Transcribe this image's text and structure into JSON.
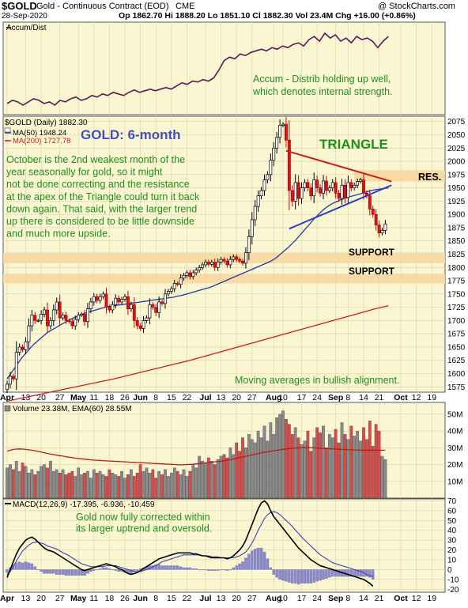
{
  "header": {
    "symbol": "$GOLD",
    "name": "Gold - Continuous Contract (EOD)",
    "exchange": "CME",
    "watermark": "@ StockCharts.com",
    "date": "28-Sep-2020",
    "quote": "Op 1862.70  Hi 1888.20  Lo 1851.10  Cl 1882.30  Vol 23.4M  Chg +16.00 (+0.86%)"
  },
  "colors": {
    "panel_bg": "#fbf6d2",
    "ma200": "#c81e1e",
    "ma50": "#223aa0",
    "annotation_green": "#1f8f1f",
    "title_blue": "#4050b8",
    "support_band": "#f7d7a0",
    "volume_down": "#d94a4a",
    "volume_up": "#8a8a8a"
  },
  "chart_data": [
    {
      "type": "line",
      "panel": "accum_dist",
      "legend": "Accum/Dist",
      "annotation": "Accum - Distrib holding up well,\nwhich denotes internal strength.",
      "series": [
        {
          "name": "Accum/Dist",
          "values": [
            0.08,
            0.12,
            0.1,
            0.06,
            0.1,
            0.14,
            0.12,
            0.08,
            0.1,
            0.06,
            0.12,
            0.1,
            0.14,
            0.16,
            0.12,
            0.14,
            0.18,
            0.16,
            0.2,
            0.18,
            0.22,
            0.2,
            0.18,
            0.22,
            0.25,
            0.22,
            0.24,
            0.26,
            0.24,
            0.26,
            0.28,
            0.26,
            0.3,
            0.34,
            0.32,
            0.36,
            0.35,
            0.38,
            0.36,
            0.4,
            0.5,
            0.62,
            0.66,
            0.64,
            0.7,
            0.68,
            0.72,
            0.74,
            0.76,
            0.74,
            0.78,
            0.76,
            0.8,
            0.78,
            0.82,
            0.84,
            0.8,
            0.88,
            0.92,
            0.86,
            0.96,
            0.9,
            0.94,
            0.86,
            0.9,
            0.84,
            0.92,
            0.88,
            0.9,
            0.86,
            0.78,
            0.86,
            0.92
          ]
        }
      ]
    },
    {
      "type": "candlestick",
      "panel": "price",
      "legend": [
        "$GOLD (Daily) 1882.30",
        "MA(50) 1948.24",
        "MA(200) 1727.78"
      ],
      "title": "GOLD: 6-month",
      "ylim": [
        1565,
        2085
      ],
      "yticks": [
        1575,
        1600,
        1625,
        1650,
        1675,
        1700,
        1725,
        1750,
        1775,
        1800,
        1825,
        1850,
        1875,
        1900,
        1925,
        1950,
        1975,
        2000,
        2025,
        2050,
        2075
      ],
      "xlabels": [
        {
          "t": 0,
          "label": "Apr"
        },
        {
          "t": 6,
          "label": "13"
        },
        {
          "t": 11,
          "label": "20"
        },
        {
          "t": 17,
          "label": "27"
        },
        {
          "t": 23,
          "label": "May"
        },
        {
          "t": 28,
          "label": "11"
        },
        {
          "t": 33,
          "label": "18"
        },
        {
          "t": 38,
          "label": "26"
        },
        {
          "t": 43,
          "label": "Jun"
        },
        {
          "t": 48,
          "label": "8"
        },
        {
          "t": 53,
          "label": "15"
        },
        {
          "t": 58,
          "label": "22"
        },
        {
          "t": 64,
          "label": "Jul"
        },
        {
          "t": 69,
          "label": "13"
        },
        {
          "t": 74,
          "label": "20"
        },
        {
          "t": 79,
          "label": "27"
        },
        {
          "t": 86,
          "label": "Aug"
        },
        {
          "t": 89,
          "label": "10"
        },
        {
          "t": 95,
          "label": "17"
        },
        {
          "t": 100,
          "label": "24"
        },
        {
          "t": 106,
          "label": "Sep"
        },
        {
          "t": 110,
          "label": "8"
        },
        {
          "t": 115,
          "label": "14"
        },
        {
          "t": 120,
          "label": "21"
        },
        {
          "t": 127,
          "label": "Oct"
        },
        {
          "t": 132,
          "label": "12"
        },
        {
          "t": 137,
          "label": "19"
        }
      ],
      "ohlc_close": [
        1580,
        1595,
        1590,
        1640,
        1650,
        1645,
        1660,
        1690,
        1710,
        1700,
        1700,
        1712,
        1720,
        1690,
        1700,
        1720,
        1735,
        1705,
        1710,
        1700,
        1698,
        1690,
        1702,
        1710,
        1712,
        1698,
        1722,
        1735,
        1745,
        1738,
        1745,
        1750,
        1725,
        1720,
        1730,
        1742,
        1735,
        1740,
        1745,
        1722,
        1730,
        1700,
        1690,
        1685,
        1700,
        1705,
        1730,
        1725,
        1715,
        1735,
        1732,
        1750,
        1755,
        1760,
        1770,
        1768,
        1780,
        1785,
        1790,
        1783,
        1790,
        1795,
        1800,
        1805,
        1810,
        1806,
        1810,
        1800,
        1810,
        1815,
        1812,
        1805,
        1815,
        1820,
        1815,
        1812,
        1808,
        1828,
        1858,
        1890,
        1915,
        1935,
        1945,
        1965,
        1975,
        2002,
        2025,
        2045,
        2068,
        2070,
        2040,
        1945,
        1925,
        1960,
        1930,
        1950,
        1960,
        1950,
        1935,
        1965,
        1950,
        1940,
        1963,
        1945,
        1950,
        1960,
        1940,
        1930,
        1955,
        1932,
        1960,
        1950,
        1955,
        1962,
        1965,
        1940,
        1935,
        1910,
        1900,
        1880,
        1865,
        1870,
        1882
      ],
      "ma50": {
        "start_t": 0,
        "values": [
          1590,
          1600,
          1610,
          1620,
          1630,
          1638,
          1646,
          1654,
          1660,
          1666,
          1672,
          1678,
          1682,
          1686,
          1690,
          1694,
          1698,
          1702,
          1705,
          1708,
          1711,
          1714,
          1716,
          1718,
          1720,
          1722,
          1724,
          1726,
          1727,
          1728,
          1729,
          1730,
          1731,
          1732,
          1733,
          1734,
          1735,
          1736,
          1737,
          1738,
          1739,
          1740,
          1741,
          1742,
          1743,
          1744,
          1746,
          1747,
          1749,
          1751,
          1753,
          1755,
          1757,
          1759,
          1761,
          1763,
          1766,
          1769,
          1772,
          1775,
          1778,
          1781,
          1784,
          1787,
          1790,
          1793,
          1796,
          1799,
          1802,
          1805,
          1808,
          1811,
          1815,
          1820,
          1826,
          1832,
          1838,
          1845,
          1852,
          1860,
          1868,
          1876,
          1884,
          1892,
          1899,
          1906,
          1912,
          1917,
          1921,
          1924,
          1927,
          1930,
          1932,
          1934,
          1936,
          1938,
          1940,
          1942,
          1944,
          1946,
          1947,
          1948,
          1949,
          1950
        ]
      },
      "ma200": {
        "start_t": 0,
        "values": [
          1548,
          1554,
          1560,
          1566,
          1572,
          1578,
          1584,
          1590,
          1597,
          1604,
          1611,
          1618,
          1625,
          1633,
          1641,
          1649,
          1657,
          1665,
          1673,
          1681,
          1689,
          1697,
          1705,
          1713,
          1721,
          1728
        ]
      },
      "annotations": [
        {
          "text": "TRIANGLE",
          "color": "green"
        },
        {
          "text": "RES.",
          "color": "black"
        },
        {
          "text": "SUPPORT",
          "color": "black"
        },
        {
          "text": "SUPPORT",
          "color": "black"
        },
        {
          "text": "Moving averages in bullish alignment.",
          "color": "green"
        },
        {
          "text": "October is the 2nd weakest month of the\nyear seasonally for gold, so it might\nnot be done correcting and the resistance\nat the apex of the Triangle could turn it back\ndown again. That said, with the larger trend\nup there is considered to be little downside\nand much more upside.",
          "color": "green"
        }
      ],
      "bands": [
        {
          "label": "RES.",
          "range": [
            1962,
            1983
          ]
        },
        {
          "label": "SUPPORT",
          "range": [
            1808,
            1828
          ]
        },
        {
          "label": "SUPPORT",
          "range": [
            1770,
            1788
          ]
        }
      ]
    },
    {
      "type": "bar",
      "panel": "volume",
      "legend": "Volume 23.38M, EMA(60) 28.55M",
      "ylim": [
        0,
        57
      ],
      "yticks": [
        10,
        20,
        30,
        40,
        50
      ],
      "ytick_suffix": "M",
      "values": [
        18,
        20,
        17,
        22,
        16,
        21,
        19,
        15,
        17,
        14,
        16,
        19,
        20,
        18,
        22,
        16,
        17,
        15,
        17,
        14,
        15,
        16,
        13,
        18,
        14,
        15,
        16,
        12,
        17,
        15,
        16,
        14,
        13,
        17,
        15,
        14,
        13,
        16,
        12,
        14,
        17,
        13,
        15,
        20,
        16,
        18,
        15,
        17,
        12,
        16,
        14,
        17,
        13,
        15,
        18,
        16,
        14,
        17,
        13,
        16,
        20,
        18,
        25,
        22,
        21,
        24,
        22,
        20,
        23,
        25,
        26,
        24,
        30,
        26,
        33,
        28,
        36,
        30,
        38,
        35,
        33,
        40,
        36,
        43,
        34,
        45,
        38,
        48,
        50,
        52,
        47,
        44,
        38,
        42,
        36,
        32,
        34,
        40,
        28,
        36,
        42,
        39,
        43,
        30,
        38,
        36,
        41,
        33,
        45,
        38,
        35,
        43,
        37,
        40,
        34,
        42,
        35,
        46,
        31,
        44,
        40,
        25,
        23
      ],
      "ema60": [
        28,
        28.5,
        29,
        29.2,
        29.3,
        29.2,
        29.0,
        28.8,
        28.5,
        28.2,
        27.8,
        27.4,
        27.0,
        26.6,
        26.2,
        25.9,
        25.6,
        25.3,
        25.0,
        24.7,
        24.4,
        24.1,
        23.8,
        23.6,
        23.4,
        23.2,
        23.0,
        22.8,
        22.6,
        22.5,
        22.4,
        22.3,
        22.2,
        22.1,
        22.0,
        21.9,
        21.8,
        21.7,
        21.6,
        21.5,
        21.4,
        21.3,
        21.2,
        21.1,
        21.0,
        20.9,
        20.8,
        20.7,
        20.6,
        20.5,
        20.4,
        20.3,
        20.2,
        20.1,
        20.0,
        19.9,
        19.8,
        19.9,
        20.0,
        20.1,
        20.2,
        20.4,
        20.6,
        20.8,
        21.0,
        21.2,
        21.4,
        21.6,
        21.8,
        22.0,
        22.3,
        22.6,
        22.9,
        23.3,
        23.7,
        24.1,
        24.5,
        24.9,
        25.3,
        25.7,
        26.1,
        26.5,
        26.9,
        27.3,
        27.6,
        27.9,
        28.2,
        28.5,
        28.8,
        29.1,
        29.3,
        29.5,
        29.7,
        29.8,
        29.9,
        30.0,
        30.0,
        30.0,
        30.0,
        29.9,
        29.8,
        29.7,
        29.6,
        29.5,
        29.4,
        29.3,
        29.2,
        29.1,
        29.0,
        28.9,
        28.8,
        28.8,
        28.7,
        28.7,
        28.6,
        28.6,
        28.6,
        28.6,
        28.6,
        28.55,
        28.55,
        28.55,
        28.55
      ]
    },
    {
      "type": "line",
      "panel": "macd",
      "legend": "MACD(12,26,9) -17.395, -6.936, -10.459",
      "annotation": "Gold now fully corrected within\nits larger uptrend and oversold.",
      "ylim": [
        -23,
        72
      ],
      "yticks": [
        -20,
        -10,
        0,
        10,
        20,
        30,
        40,
        50,
        60,
        70
      ],
      "macd": [
        -8,
        0,
        8,
        16,
        22,
        26,
        30,
        32,
        33,
        31,
        28,
        25,
        22,
        20,
        19,
        18,
        16,
        14,
        12,
        10,
        8,
        6,
        4,
        2,
        0,
        -1,
        0,
        1,
        2,
        3,
        4,
        5,
        6,
        5,
        4,
        3,
        1,
        0,
        -2,
        -4,
        -5,
        -4,
        -3,
        -1,
        1,
        3,
        5,
        7,
        9,
        11,
        12,
        13,
        14,
        15,
        16,
        17,
        17,
        17,
        17,
        17,
        16,
        16,
        15,
        14,
        14,
        13,
        12,
        12,
        12,
        12,
        12,
        11,
        12,
        14,
        17,
        20,
        24,
        30,
        38,
        46,
        54,
        62,
        68,
        70,
        67,
        60,
        54,
        50,
        46,
        42,
        38,
        34,
        30,
        26,
        22,
        19,
        16,
        13,
        10,
        8,
        6,
        4,
        3,
        2,
        1,
        0,
        -1,
        -2,
        -3,
        -4,
        -5,
        -6,
        -7,
        -8,
        -9,
        -10,
        -12,
        -14,
        -17
      ],
      "signal": [
        -5,
        -2,
        3,
        9,
        14,
        19,
        22,
        25,
        27,
        28,
        28,
        27,
        26,
        24,
        23,
        22,
        21,
        19,
        17,
        16,
        14,
        12,
        10,
        8,
        6,
        5,
        4,
        3,
        3,
        3,
        3,
        3,
        4,
        4,
        4,
        4,
        3,
        2,
        1,
        0,
        -1,
        -2,
        -2,
        -2,
        -1,
        0,
        1,
        3,
        4,
        6,
        8,
        9,
        10,
        11,
        12,
        13,
        14,
        15,
        15,
        15,
        15,
        15,
        15,
        14,
        14,
        14,
        13,
        13,
        13,
        12,
        12,
        12,
        12,
        12,
        13,
        14,
        16,
        18,
        22,
        27,
        33,
        40,
        46,
        52,
        56,
        58,
        59,
        58,
        56,
        53,
        50,
        47,
        44,
        40,
        37,
        33,
        30,
        27,
        24,
        21,
        18,
        15,
        13,
        11,
        9,
        7,
        6,
        5,
        4,
        3,
        2,
        1,
        0,
        -1,
        -2,
        -3,
        -5,
        -6,
        -7
      ]
    }
  ]
}
